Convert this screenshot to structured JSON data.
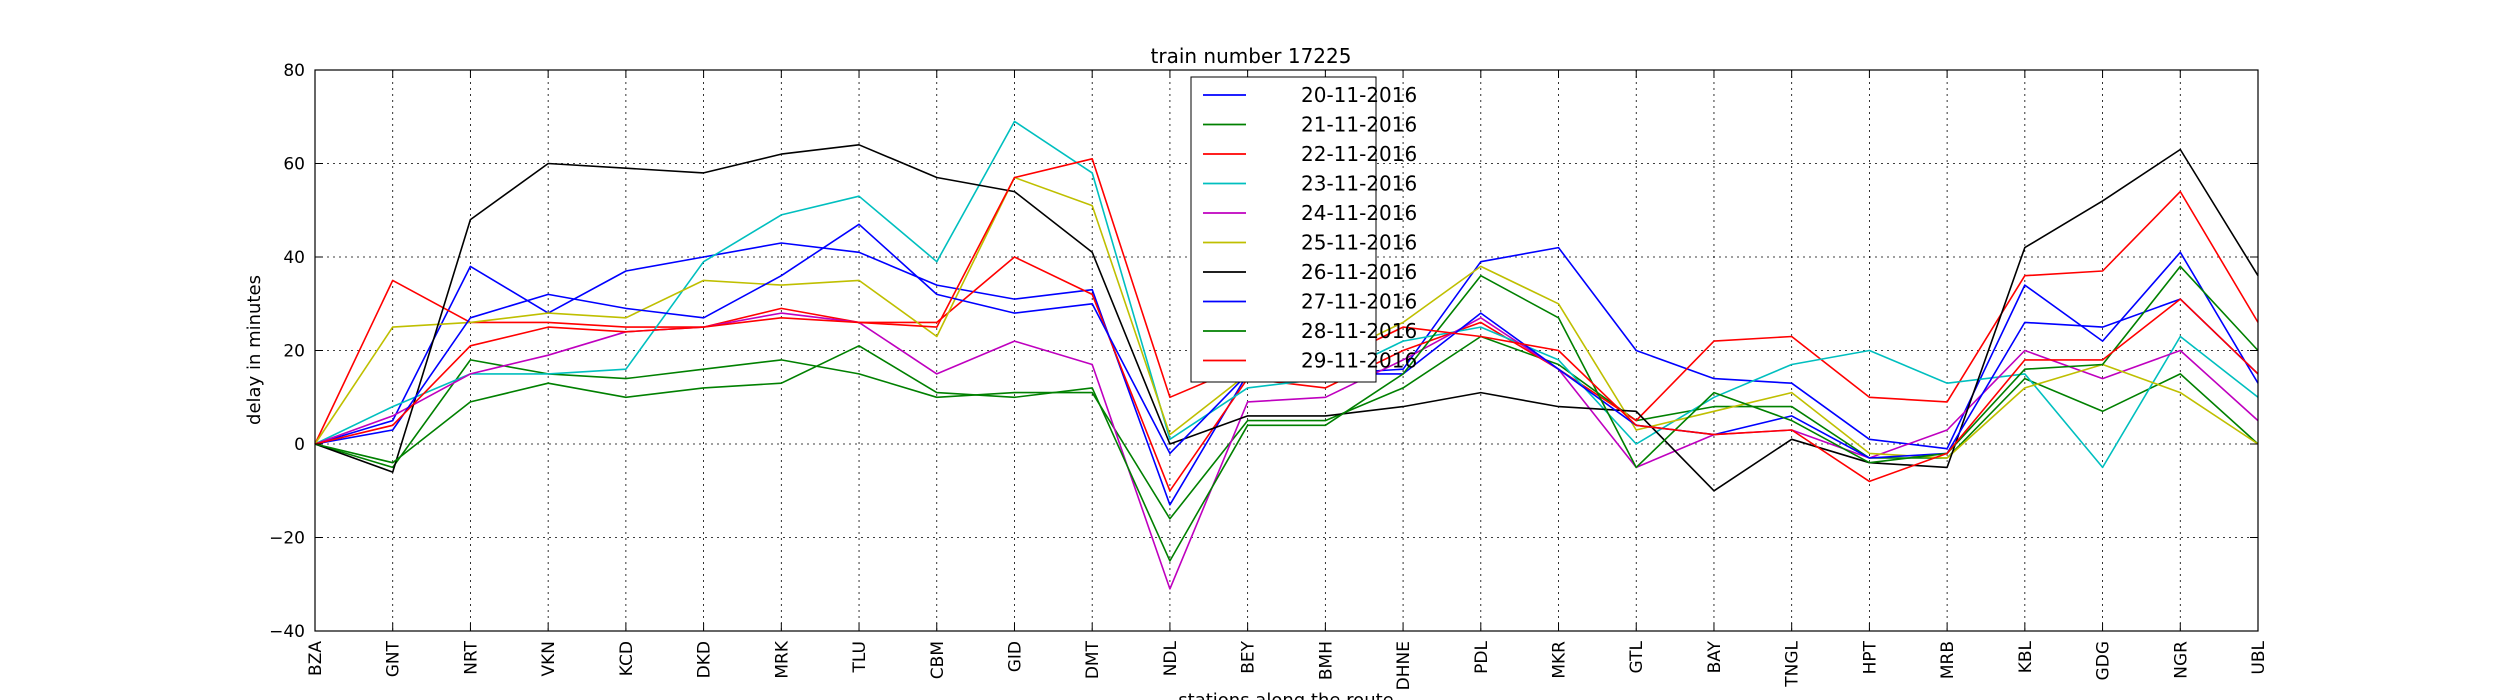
{
  "chart_data": {
    "type": "line",
    "title": "train number 17225",
    "xlabel": "stations along the route",
    "ylabel": "delay in minutes",
    "ylim": [
      -40,
      80
    ],
    "yticks": [
      -40,
      -20,
      0,
      20,
      40,
      60,
      80
    ],
    "grid": true,
    "legend_position": "top-center",
    "categories": [
      "BZA",
      "GNT",
      "NRT",
      "VKN",
      "KCD",
      "DKD",
      "MRK",
      "TLU",
      "CBM",
      "GID",
      "DMT",
      "NDL",
      "BEY",
      "BMH",
      "DHNE",
      "PDL",
      "MKR",
      "GTL",
      "BAY",
      "TNGL",
      "HPT",
      "MRB",
      "KBL",
      "GDG",
      "NGR",
      "UBL"
    ],
    "series": [
      {
        "name": "20-11-2016",
        "color": "#0000ff",
        "values": [
          0,
          5,
          38,
          28,
          37,
          40,
          43,
          41,
          34,
          31,
          33,
          -13,
          15,
          15,
          16,
          39,
          42,
          20,
          14,
          13,
          1,
          -1,
          34,
          22,
          41,
          13
        ]
      },
      {
        "name": "21-11-2016",
        "color": "#008000",
        "values": [
          0,
          -5,
          18,
          15,
          14,
          16,
          18,
          15,
          10,
          11,
          11,
          -16,
          5,
          5,
          12,
          23,
          17,
          5,
          8,
          8,
          -3,
          -3,
          14,
          7,
          15,
          0
        ]
      },
      {
        "name": "22-11-2016",
        "color": "#ff0000",
        "values": [
          0,
          35,
          26,
          26,
          25,
          25,
          29,
          26,
          26,
          40,
          32,
          -10,
          14,
          12,
          20,
          26,
          16,
          5,
          22,
          23,
          10,
          9,
          36,
          37,
          54,
          26
        ]
      },
      {
        "name": "23-11-2016",
        "color": "#00bfbf",
        "values": [
          0,
          8,
          15,
          15,
          16,
          39,
          49,
          53,
          39,
          69,
          58,
          1,
          12,
          14,
          22,
          25,
          18,
          0,
          10,
          17,
          20,
          13,
          15,
          -5,
          23,
          10
        ]
      },
      {
        "name": "24-11-2016",
        "color": "#bf00bf",
        "values": [
          0,
          6,
          15,
          19,
          24,
          25,
          28,
          26,
          15,
          22,
          17,
          -31,
          9,
          10,
          18,
          27,
          16,
          -5,
          2,
          3,
          -3,
          3,
          20,
          14,
          20,
          5
        ]
      },
      {
        "name": "25-11-2016",
        "color": "#bfbf00",
        "values": [
          0,
          25,
          26,
          28,
          27,
          35,
          34,
          35,
          23,
          57,
          51,
          2,
          15,
          18,
          26,
          38,
          30,
          3,
          7,
          11,
          -2,
          -3,
          12,
          17,
          11,
          0
        ]
      },
      {
        "name": "26-11-2016",
        "color": "#000000",
        "values": [
          0,
          -6,
          48,
          60,
          59,
          58,
          62,
          64,
          57,
          54,
          41,
          0,
          6,
          6,
          8,
          11,
          8,
          7,
          -10,
          1,
          -4,
          -5,
          42,
          52,
          63,
          36
        ]
      },
      {
        "name": "27-11-2016",
        "color": "#0000ff",
        "values": [
          0,
          3,
          27,
          32,
          29,
          27,
          36,
          47,
          32,
          28,
          30,
          -2,
          15,
          15,
          15,
          28,
          16,
          4,
          2,
          6,
          -3,
          -2,
          26,
          25,
          31,
          15
        ]
      },
      {
        "name": "28-11-2016",
        "color": "#008000",
        "values": [
          0,
          -4,
          9,
          13,
          10,
          12,
          13,
          21,
          11,
          10,
          12,
          -25,
          4,
          4,
          15,
          36,
          27,
          -5,
          11,
          5,
          -4,
          -2,
          16,
          17,
          38,
          20
        ]
      },
      {
        "name": "29-11-2016",
        "color": "#ff0000",
        "values": [
          0,
          4,
          21,
          25,
          24,
          25,
          27,
          26,
          25,
          57,
          61,
          10,
          17,
          17,
          25,
          23,
          20,
          4,
          2,
          3,
          -8,
          -2,
          18,
          18,
          31,
          15
        ]
      }
    ]
  }
}
